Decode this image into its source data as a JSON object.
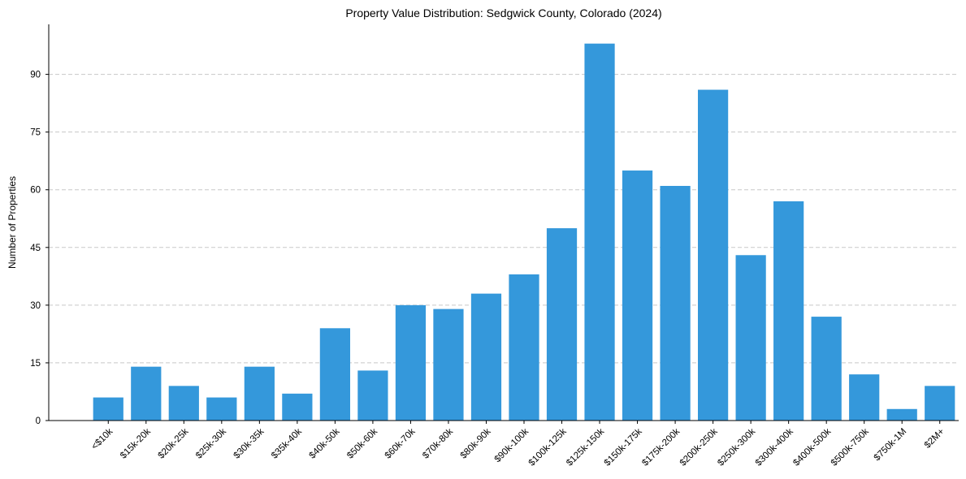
{
  "chart_data": {
    "type": "bar",
    "title": "Property Value Distribution: Sedgwick County, Colorado (2024)",
    "xlabel": "",
    "ylabel": "Number of Properties",
    "ylim": [
      0,
      103
    ],
    "yticks": [
      0,
      15,
      30,
      45,
      60,
      75,
      90
    ],
    "grid": true,
    "bar_color": "#3498db",
    "categories": [
      "<$10k",
      "$15k-20k",
      "$20k-25k",
      "$25k-30k",
      "$30k-35k",
      "$35k-40k",
      "$40k-50k",
      "$50k-60k",
      "$60k-70k",
      "$70k-80k",
      "$80k-90k",
      "$90k-100k",
      "$100k-125k",
      "$125k-150k",
      "$150k-175k",
      "$175k-200k",
      "$200k-250k",
      "$250k-300k",
      "$300k-400k",
      "$400k-500k",
      "$500k-750k",
      "$750k-1M",
      "$2M+"
    ],
    "values": [
      6,
      14,
      9,
      6,
      14,
      7,
      24,
      13,
      30,
      29,
      33,
      38,
      50,
      98,
      65,
      61,
      86,
      43,
      57,
      27,
      12,
      3,
      9
    ]
  }
}
